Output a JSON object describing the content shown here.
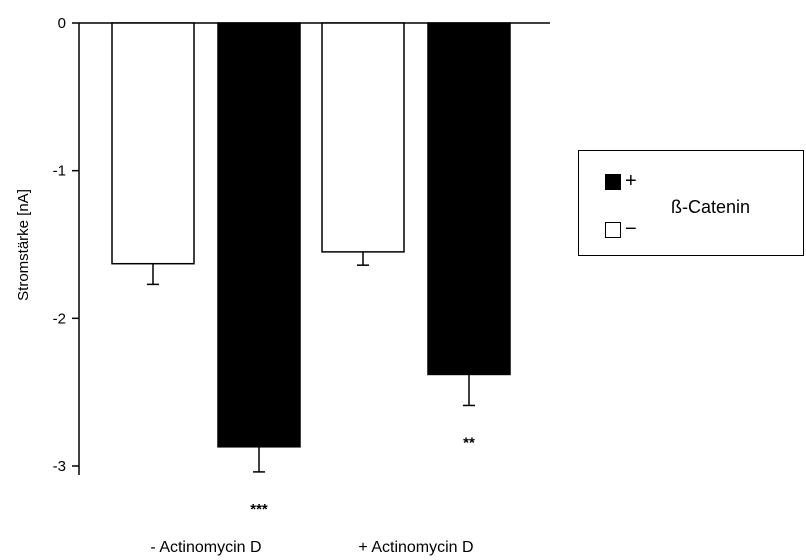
{
  "chart_data": {
    "type": "bar",
    "title": "",
    "xlabel": "",
    "ylabel": "Stromstärke [nA]",
    "ylim": [
      -3,
      0
    ],
    "yticks": [
      "0",
      "-1",
      "-2",
      "-3"
    ],
    "categories": [
      "- Actinomycin D",
      "+ Actinomycin D"
    ],
    "series": [
      {
        "name": "−",
        "color": "#ffffff",
        "values": [
          -1.63,
          -1.55
        ],
        "errors": [
          0.14,
          0.09
        ],
        "significance": [
          "",
          ""
        ]
      },
      {
        "name": "+",
        "color": "#000000",
        "values": [
          -2.87,
          -2.38
        ],
        "errors": [
          0.17,
          0.21
        ],
        "significance": [
          "***",
          "**"
        ]
      }
    ],
    "legend": {
      "title": "ß-Catenin",
      "placement": "right",
      "entries": [
        {
          "sign": "+",
          "color": "#000000"
        },
        {
          "sign": "−",
          "color": "#ffffff"
        }
      ]
    },
    "grid": false
  }
}
